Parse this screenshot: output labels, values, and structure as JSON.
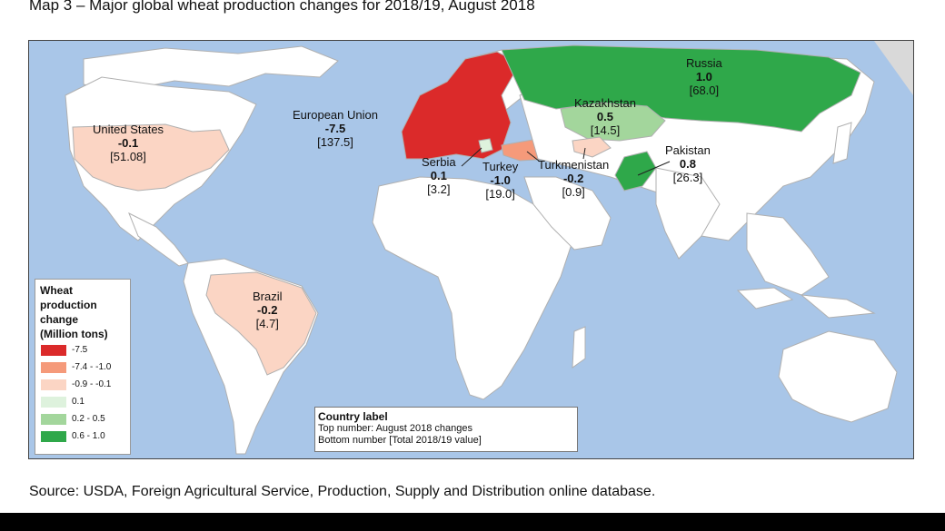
{
  "title": "Map 3 – Major global wheat production changes for 2018/19, August 2018",
  "colors": {
    "ocean": "#a9c6e8",
    "land": "#ffffff",
    "border": "#b0b0b0",
    "cat_neg_large": "#db2a2a",
    "cat_neg_mid": "#f59a7a",
    "cat_neg_small": "#fbd5c4",
    "cat_pos_small": "#def2dd",
    "cat_pos_mid": "#a3d69c",
    "cat_pos_large": "#2fa84a"
  },
  "countries": [
    {
      "name": "United States",
      "change": "-0.1",
      "total": "[51.08]"
    },
    {
      "name": "European Union",
      "change": "-7.5",
      "total": "[137.5]"
    },
    {
      "name": "Serbia",
      "change": "0.1",
      "total": "[3.2]"
    },
    {
      "name": "Turkey",
      "change": "-1.0",
      "total": "[19.0]"
    },
    {
      "name": "Turkmenistan",
      "change": "-0.2",
      "total": "[0.9]"
    },
    {
      "name": "Kazakhstan",
      "change": "0.5",
      "total": "[14.5]"
    },
    {
      "name": "Russia",
      "change": "1.0",
      "total": "[68.0]"
    },
    {
      "name": "Pakistan",
      "change": "0.8",
      "total": "[26.3]"
    },
    {
      "name": "Brazil",
      "change": "-0.2",
      "total": "[4.7]"
    }
  ],
  "legend": {
    "title": "Wheat\nproduction\nchange\n(Million tons)",
    "items": [
      {
        "label": "-7.5",
        "color": "#db2a2a"
      },
      {
        "label": "-7.4 - -1.0",
        "color": "#f59a7a"
      },
      {
        "label": "-0.9 - -0.1",
        "color": "#fbd5c4"
      },
      {
        "label": "0.1",
        "color": "#def2dd"
      },
      {
        "label": "0.2 - 0.5",
        "color": "#a3d69c"
      },
      {
        "label": "0.6 - 1.0",
        "color": "#2fa84a"
      }
    ]
  },
  "label_box": {
    "title": "Country label",
    "line1": "Top number: August 2018 changes",
    "line2": "Bottom number [Total 2018/19 value]"
  },
  "source": "Source: USDA, Foreign Agricultural Service, Production, Supply and Distribution online database."
}
